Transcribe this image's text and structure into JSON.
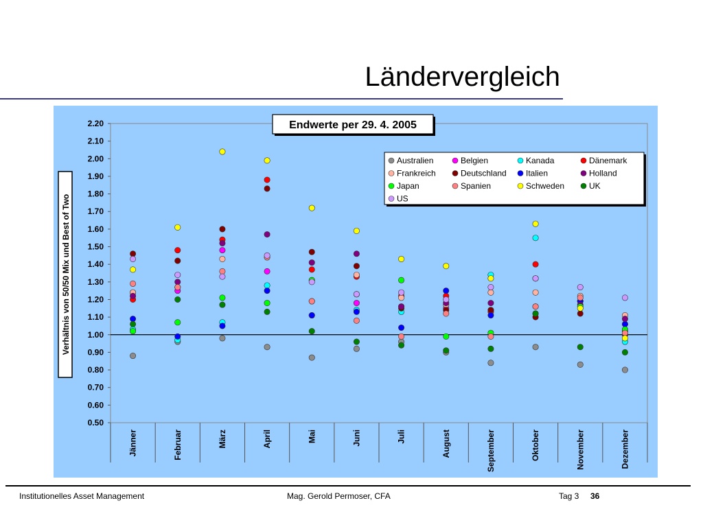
{
  "slide": {
    "title": "Ländervergleich",
    "footer_left": "Institutionelles Asset Management",
    "footer_center": "Mag. Gerold Permoser, CFA",
    "footer_right": "Tag 3",
    "page_number": "36"
  },
  "chart_data": {
    "type": "scatter",
    "title": "Endwerte per 29. 4. 2005",
    "xlabel": "",
    "ylabel": "Verhältnis von 50/50 Mix und Best of Two",
    "ylim": [
      0.5,
      2.2
    ],
    "yticks": [
      "0.50",
      "0.60",
      "0.70",
      "0.80",
      "0.90",
      "1.00",
      "1.10",
      "1.20",
      "1.30",
      "1.40",
      "1.50",
      "1.60",
      "1.70",
      "1.80",
      "1.90",
      "2.00",
      "2.10",
      "2.20"
    ],
    "reference_line": 1.0,
    "grid": false,
    "legend_position": "top-right",
    "background_color": "#99ccff",
    "categories": [
      "Jänner",
      "Februar",
      "März",
      "April",
      "Mai",
      "Juni",
      "Juli",
      "August",
      "September",
      "Oktober",
      "November",
      "Dezember"
    ],
    "series": [
      {
        "name": "Australien",
        "color": "#8c8c8c",
        "values": [
          0.88,
          0.96,
          0.98,
          0.93,
          0.87,
          0.92,
          0.96,
          0.9,
          0.84,
          0.93,
          0.83,
          0.8
        ]
      },
      {
        "name": "Belgien",
        "color": "#ff00ff",
        "values": [
          1.24,
          1.25,
          1.48,
          1.36,
          1.19,
          1.18,
          1.16,
          1.15,
          1.14,
          1.16,
          1.19,
          1.06
        ]
      },
      {
        "name": "Kanada",
        "color": "#00ffff",
        "values": [
          1.03,
          0.97,
          1.07,
          1.28,
          1.11,
          1.14,
          1.13,
          1.2,
          1.34,
          1.55,
          1.19,
          0.96
        ]
      },
      {
        "name": "Dänemark",
        "color": "#ff0000",
        "values": [
          1.2,
          1.48,
          1.54,
          1.88,
          1.37,
          1.33,
          1.22,
          1.22,
          1.13,
          1.4,
          1.19,
          1.02
        ]
      },
      {
        "name": "Frankreich",
        "color": "#ffb3a0",
        "values": [
          1.24,
          1.27,
          1.43,
          1.44,
          1.31,
          1.34,
          1.21,
          1.17,
          1.24,
          1.24,
          1.22,
          1.11
        ]
      },
      {
        "name": "Deutschland",
        "color": "#800000",
        "values": [
          1.46,
          1.42,
          1.6,
          1.83,
          1.47,
          1.39,
          1.15,
          1.14,
          1.14,
          1.1,
          1.12,
          1.0
        ]
      },
      {
        "name": "Italien",
        "color": "#0000ff",
        "values": [
          1.09,
          0.99,
          1.05,
          1.25,
          1.11,
          1.13,
          1.04,
          1.25,
          1.11,
          1.32,
          1.19,
          1.06
        ]
      },
      {
        "name": "Holland",
        "color": "#800080",
        "values": [
          1.22,
          1.3,
          1.52,
          1.57,
          1.41,
          1.46,
          1.16,
          1.18,
          1.18,
          1.32,
          1.17,
          1.09
        ]
      },
      {
        "name": "Japan",
        "color": "#00ff00",
        "values": [
          1.02,
          1.07,
          1.21,
          1.18,
          1.31,
          1.23,
          1.31,
          0.99,
          1.01,
          1.12,
          1.16,
          1.03
        ]
      },
      {
        "name": "Spanien",
        "color": "#ff8080",
        "values": [
          1.29,
          1.27,
          1.36,
          1.44,
          1.19,
          1.08,
          0.99,
          1.12,
          0.99,
          1.16,
          1.21,
          1.01
        ]
      },
      {
        "name": "Schweden",
        "color": "#ffff00",
        "values": [
          1.37,
          1.61,
          2.04,
          1.99,
          1.72,
          1.59,
          1.43,
          1.39,
          1.32,
          1.63,
          1.15,
          0.98
        ]
      },
      {
        "name": "UK",
        "color": "#008000",
        "values": [
          1.06,
          1.2,
          1.17,
          1.13,
          1.02,
          0.96,
          0.94,
          0.91,
          0.92,
          1.12,
          0.93,
          0.9
        ]
      },
      {
        "name": "US",
        "color": "#cc99ff",
        "values": [
          1.43,
          1.34,
          1.33,
          1.45,
          1.3,
          1.23,
          1.24,
          1.2,
          1.27,
          1.32,
          1.27,
          1.21
        ]
      }
    ]
  }
}
